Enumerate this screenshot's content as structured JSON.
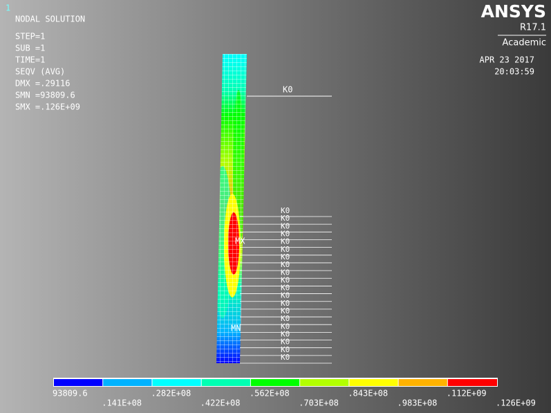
{
  "window_number": "1",
  "info": {
    "title": "NODAL SOLUTION",
    "lines": [
      "STEP=1",
      "SUB =1",
      "TIME=1",
      "SEQV      (AVG)",
      "DMX =.29116",
      "SMN =93809.6",
      "SMX =.126E+09"
    ]
  },
  "brand": {
    "name": "ANSYS",
    "release": "R17.1",
    "edition": "Academic",
    "date": "APR 23 2017",
    "time": "20:03:59"
  },
  "model_labels": {
    "max": "MX",
    "min": "MN",
    "top_load": "K0",
    "side_loads": [
      "K0",
      "K0",
      "K0",
      "K0",
      "K0",
      "K0",
      "K0",
      "K0",
      "K0",
      "K0",
      "K0",
      "K0",
      "K0",
      "K0",
      "K0",
      "K0",
      "K0",
      "K0",
      "K0",
      "K0"
    ]
  },
  "legend": {
    "colors": [
      "#0000ff",
      "#00b2ff",
      "#00ffff",
      "#00ffb2",
      "#00ff00",
      "#b2ff00",
      "#ffff00",
      "#ffb200",
      "#ff0000"
    ],
    "labels": [
      "93809.6",
      ".141E+08",
      ".282E+08",
      ".422E+08",
      ".562E+08",
      ".703E+08",
      ".843E+08",
      ".983E+08",
      ".112E+09",
      ".126E+09"
    ]
  }
}
